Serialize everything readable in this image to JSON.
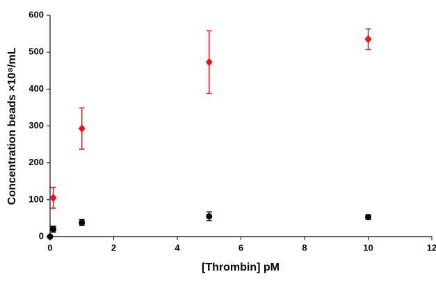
{
  "chart_data": {
    "type": "scatter",
    "x_label": "[Thrombin] pM",
    "y_label": "Concentration beads ×10⁸/mL",
    "xlim": [
      0,
      12
    ],
    "xticks": [
      0,
      2,
      4,
      6,
      8,
      10,
      12
    ],
    "ylim": [
      0,
      600
    ],
    "yticks": [
      0,
      100,
      200,
      300,
      400,
      500,
      600
    ],
    "grid": false,
    "series": [
      {
        "color": "#e8141b",
        "marker": "diamond",
        "x": [
          0,
          0.1,
          1,
          5,
          10
        ],
        "values": [
          0,
          105,
          293,
          473,
          535
        ],
        "errors": [
          0,
          28,
          56,
          85,
          28
        ]
      },
      {
        "color": "#000000",
        "marker": "circle",
        "x": [
          0,
          0.1,
          1,
          5,
          10
        ],
        "values": [
          0,
          20,
          38,
          55,
          53
        ],
        "errors": [
          0,
          8,
          8,
          12,
          6
        ]
      }
    ]
  }
}
